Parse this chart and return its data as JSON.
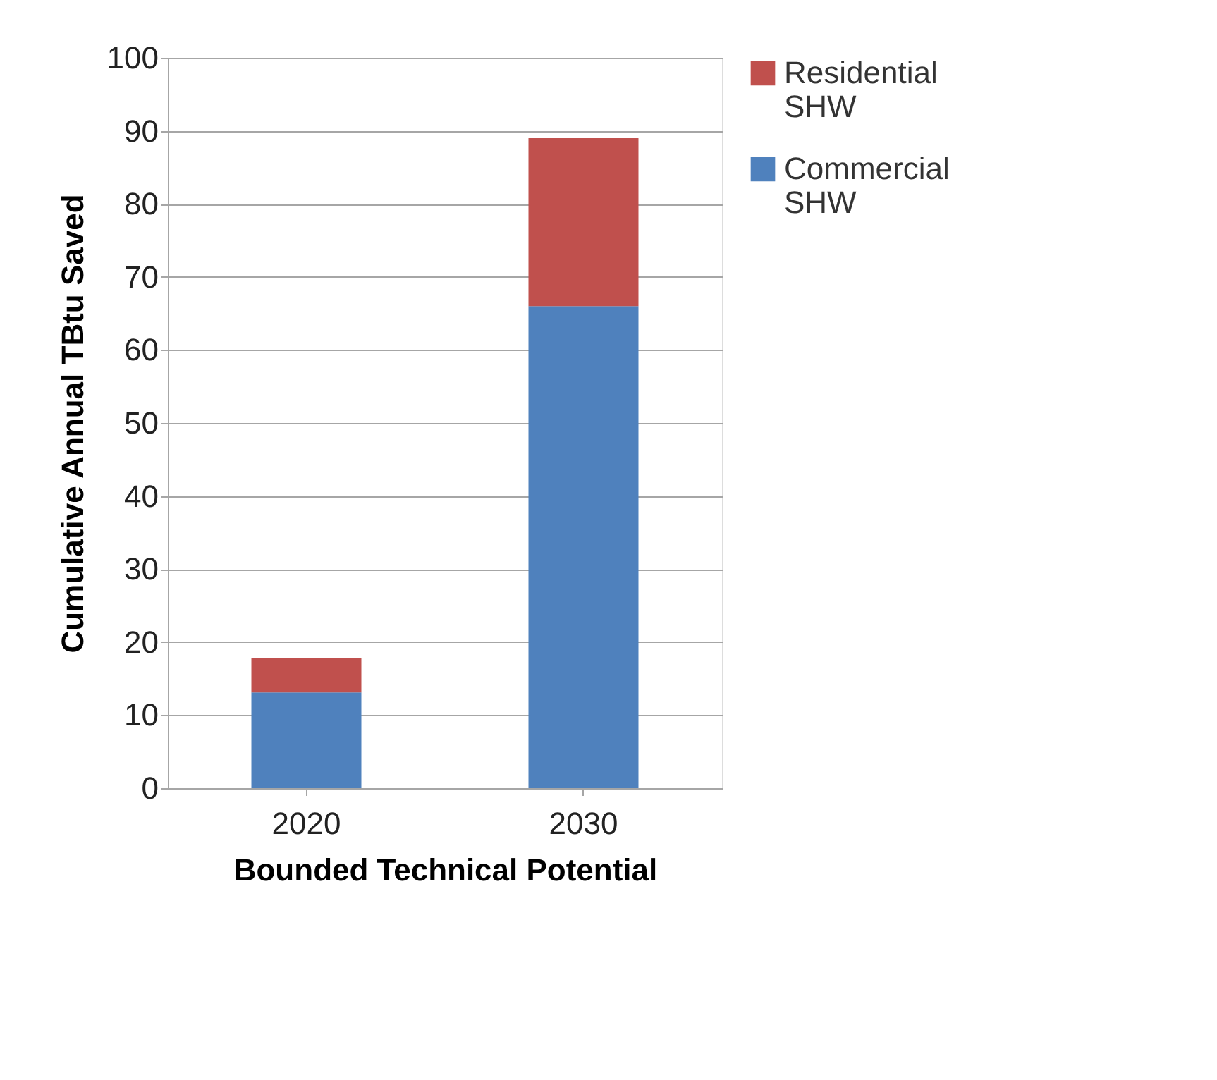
{
  "chart_data": {
    "type": "bar",
    "stacked": true,
    "xlabel": "Bounded Technical Potential",
    "ylabel": "Cumulative Annual TBtu Saved",
    "categories": [
      "2020",
      "2030"
    ],
    "series": [
      {
        "name": "Commercial SHW",
        "color": "#4f81bd",
        "values": [
          13.1,
          66
        ]
      },
      {
        "name": "Residential SHW",
        "color": "#c0504d",
        "values": [
          4.7,
          23
        ]
      }
    ],
    "ylim": [
      0,
      100
    ],
    "yticks": [
      0,
      10,
      20,
      30,
      40,
      50,
      60,
      70,
      80,
      90,
      100
    ],
    "grid": "y",
    "legend": "right"
  }
}
